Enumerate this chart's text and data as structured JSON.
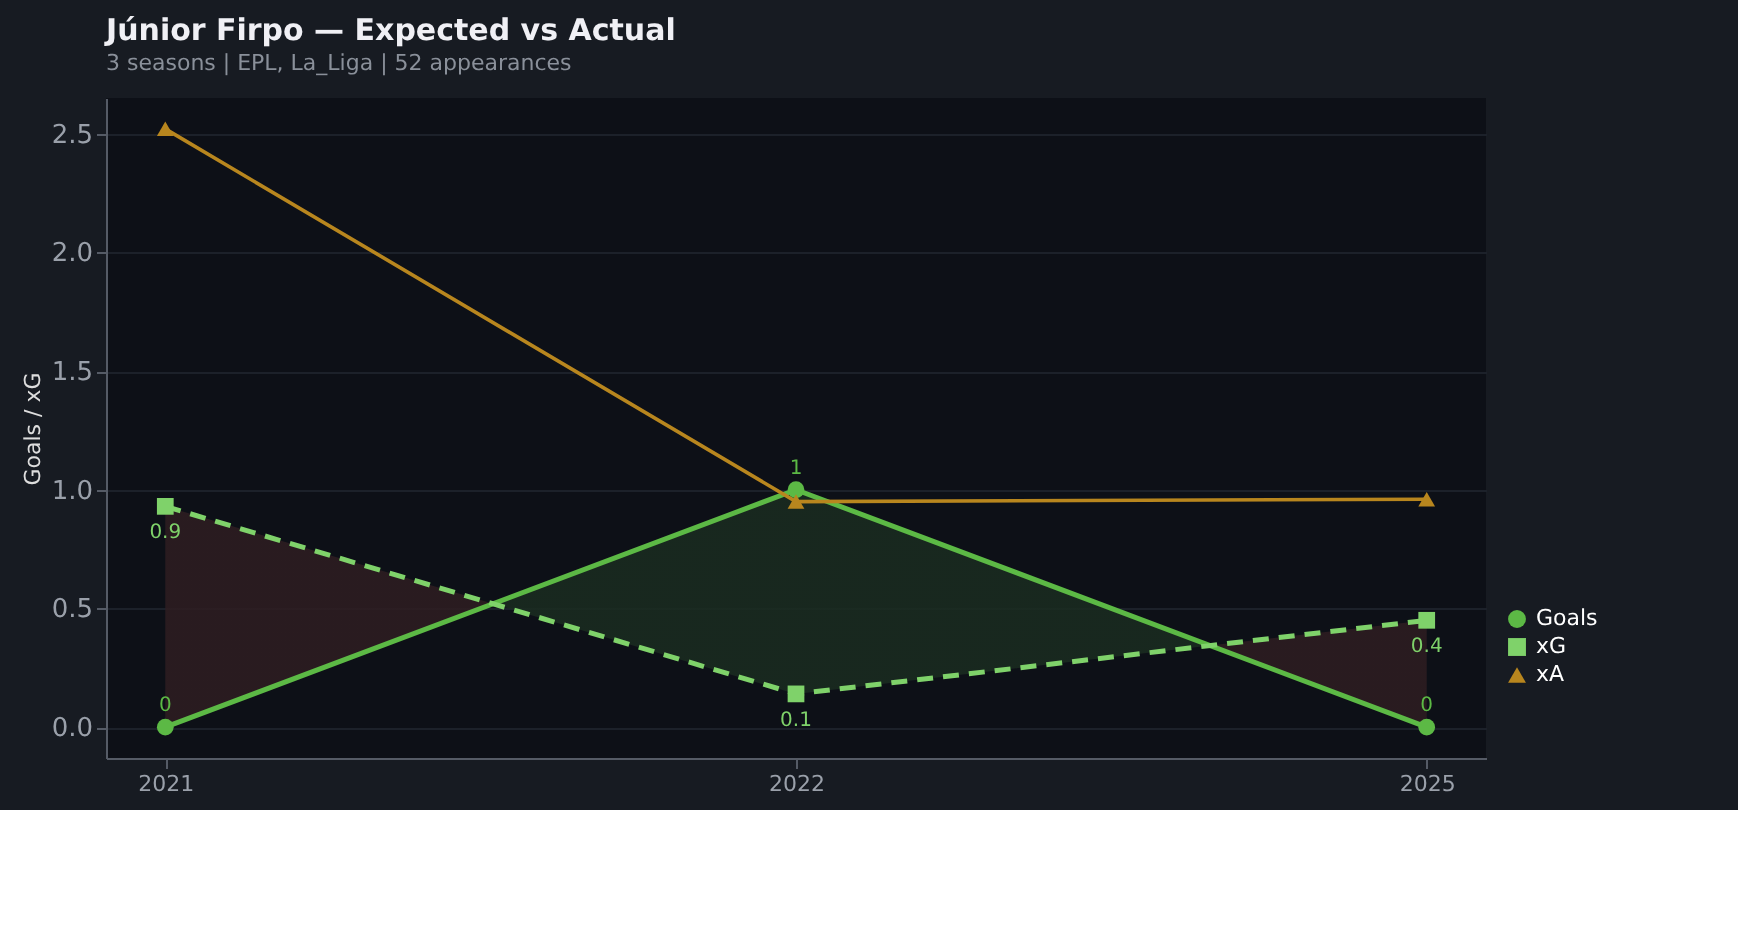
{
  "chart_data": {
    "type": "line",
    "title": "Júnior Firpo — Expected vs Actual",
    "subtitle": "3 seasons | EPL, La_Liga | 52 appearances",
    "ylabel": "Goals / xG",
    "categories": [
      "2021",
      "2022",
      "2025"
    ],
    "series": [
      {
        "name": "Goals",
        "color": "#5cb945",
        "values": [
          0,
          1,
          0
        ],
        "marker": "circle",
        "line_style": "solid",
        "value_labels": [
          "0",
          "1",
          "0"
        ],
        "lower": [
          0.93,
          0.14,
          0.45
        ],
        "upper": [
          0,
          1,
          0
        ]
      },
      {
        "name": "xG",
        "color": "#7fd26a",
        "values": [
          0.93,
          0.14,
          0.45
        ],
        "marker": "square",
        "line_style": "dashed",
        "value_labels": [
          "0.9",
          "0.1",
          "0.4"
        ]
      },
      {
        "name": "xA",
        "color": "#b8861e",
        "values": [
          2.52,
          0.95,
          0.96
        ],
        "marker": "triangle",
        "line_style": "solid"
      }
    ],
    "ylim": [
      -0.13,
      2.65
    ],
    "yticks": [
      {
        "value": 0,
        "label": "0.0"
      },
      0.5,
      {
        "value": 1,
        "label": "1.0"
      },
      1.5,
      {
        "value": 2,
        "label": "2.0"
      },
      2.5
    ],
    "grid": "y",
    "legend": "bottom right"
  }
}
